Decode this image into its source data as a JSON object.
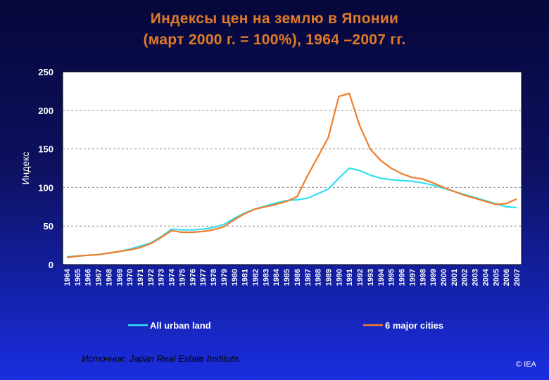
{
  "title_line1": "Индексы цен на землю в Японии",
  "title_line2": "(март 2000 г. = 100%), 1964 –2007 гг.",
  "source": "Источник: Japan Real Estate Institute.",
  "credit": "© IEA",
  "colors": {
    "title": "#e07a2a",
    "plot_bg": "#ffffff",
    "all_urban": "#33e0f0",
    "six_cities": "#f07d2a"
  },
  "chart_data": {
    "type": "line",
    "title": "Индексы цен на землю в Японии (март 2000 г. = 100%), 1964 –2007 гг.",
    "xlabel": "",
    "ylabel": "Индекс",
    "ylim": [
      0,
      250
    ],
    "yticks": [
      0,
      50,
      100,
      150,
      200,
      250
    ],
    "grid": true,
    "legend": "bottom",
    "x": [
      1964,
      1965,
      1966,
      1967,
      1968,
      1969,
      1970,
      1971,
      1972,
      1973,
      1974,
      1975,
      1976,
      1977,
      1978,
      1979,
      1980,
      1981,
      1982,
      1983,
      1984,
      1985,
      1986,
      1987,
      1988,
      1989,
      1990,
      1991,
      1992,
      1993,
      1994,
      1995,
      1996,
      1997,
      1998,
      1999,
      2000,
      2001,
      2002,
      2003,
      2004,
      2005,
      2006,
      2007
    ],
    "series": [
      {
        "name": "All urban land",
        "color": "#33e0f0",
        "values": [
          10,
          11,
          12,
          13,
          15,
          17,
          20,
          24,
          28,
          36,
          46,
          45,
          45,
          46,
          48,
          52,
          60,
          67,
          72,
          76,
          80,
          83,
          84,
          86,
          92,
          98,
          112,
          125,
          122,
          116,
          112,
          110,
          109,
          108,
          106,
          103,
          99,
          95,
          91,
          87,
          83,
          79,
          75,
          74
        ]
      },
      {
        "name": "6 major cities",
        "color": "#f07d2a",
        "values": [
          9,
          11,
          12,
          13,
          15,
          17,
          19,
          22,
          27,
          35,
          44,
          42,
          42,
          43,
          45,
          49,
          58,
          66,
          72,
          75,
          78,
          82,
          88,
          115,
          140,
          165,
          218,
          222,
          180,
          150,
          135,
          125,
          118,
          113,
          111,
          106,
          100,
          95,
          90,
          86,
          82,
          78,
          79,
          85
        ]
      }
    ]
  }
}
